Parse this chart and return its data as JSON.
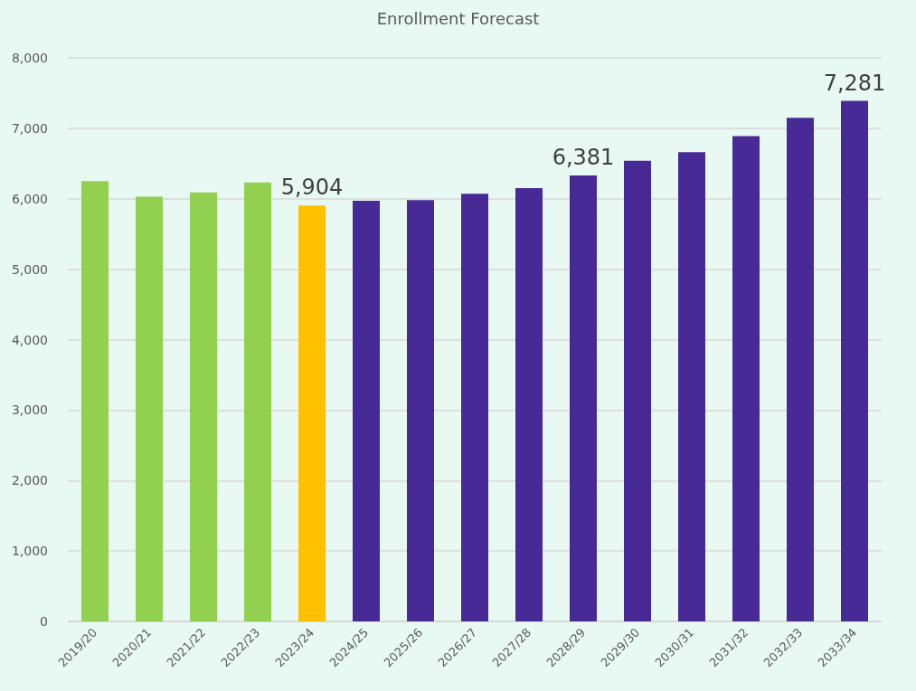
{
  "chart_data": {
    "type": "bar",
    "title": "Enrollment Forecast",
    "categories": [
      "2019/20",
      "2020/21",
      "2021/22",
      "2022/23",
      "2023/24",
      "2024/25",
      "2025/26",
      "2026/27",
      "2027/28",
      "2028/29",
      "2029/30",
      "2030/31",
      "2031/32",
      "2032/33",
      "2033/34"
    ],
    "values": [
      6250,
      6030,
      6090,
      6230,
      5904,
      5970,
      5980,
      6070,
      6150,
      6330,
      6540,
      6660,
      6890,
      7150,
      7390
    ],
    "colors": [
      "#92d050",
      "#92d050",
      "#92d050",
      "#92d050",
      "#ffc000",
      "#472a96",
      "#472a96",
      "#472a96",
      "#472a96",
      "#472a96",
      "#472a96",
      "#472a96",
      "#472a96",
      "#472a96",
      "#472a96"
    ],
    "annotations": [
      {
        "text": "5,904",
        "x": "2023/24",
        "y": 5904
      },
      {
        "text": "6,381",
        "x": "2028/29",
        "y": 6330
      },
      {
        "text": "7,281",
        "x": "2033/34",
        "y": 7390
      }
    ],
    "ylim": [
      0,
      8000
    ],
    "yticks": [
      0,
      {
        "value": 1000,
        "label": "1,000"
      },
      {
        "value": 2000,
        "label": "2,000"
      },
      {
        "value": 3000,
        "label": "3,000"
      },
      {
        "value": 4000,
        "label": "4,000"
      },
      {
        "value": 5000,
        "label": "5,000"
      },
      {
        "value": 6000,
        "label": "6,000"
      },
      {
        "value": 7000,
        "label": "7,000"
      },
      {
        "value": 8000,
        "label": "8,000"
      }
    ],
    "grid": "y"
  }
}
